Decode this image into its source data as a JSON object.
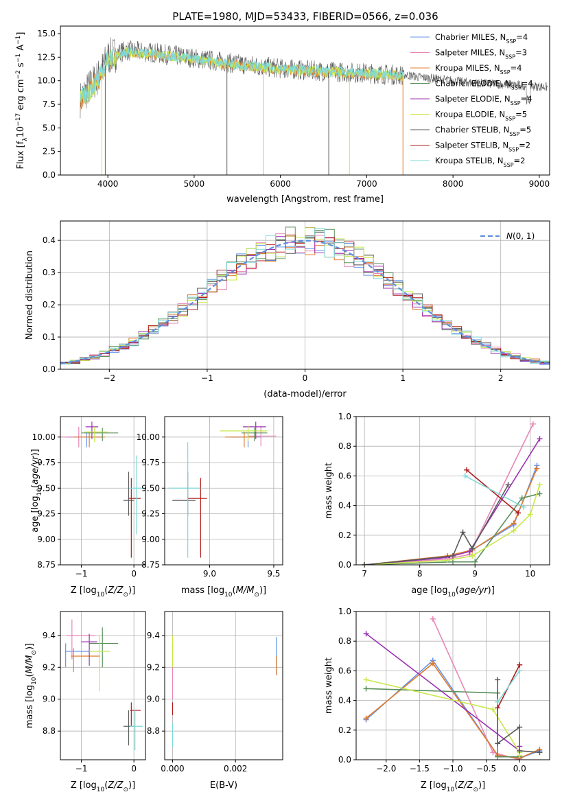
{
  "figure_title": "PLATE=1980, MJD=53433, FIBERID=0566, z=0.036",
  "colors": {
    "c0": "#6495ed",
    "c1": "#e887b7",
    "c2": "#e07b2c",
    "c3": "#5b8f5b",
    "c4": "#9b30b5",
    "c5": "#c8e84a",
    "c6": "#5a5a5a",
    "c7": "#b01c1c",
    "c8": "#7fd8d8",
    "normal": "#5f8fdc",
    "grid": "#b0b0b0"
  },
  "legend": [
    {
      "text": "Chabrier MILES, N",
      "sub": "SSP",
      "tail": "=4",
      "color": "c0"
    },
    {
      "text": "Salpeter MILES, N",
      "sub": "SSP",
      "tail": "=3",
      "color": "c1"
    },
    {
      "text": "Kroupa MILES, N",
      "sub": "SSP",
      "tail": "=4",
      "color": "c2"
    },
    {
      "text": "Chabrier ELODIE, N",
      "sub": "SSP",
      "tail": "=4",
      "color": "c3"
    },
    {
      "text": "Salpeter ELODIE, N",
      "sub": "SSP",
      "tail": "=4",
      "color": "c4"
    },
    {
      "text": "Kroupa ELODIE, N",
      "sub": "SSP",
      "tail": "=5",
      "color": "c5"
    },
    {
      "text": "Chabrier STELIB, N",
      "sub": "SSP",
      "tail": "=5",
      "color": "c6"
    },
    {
      "text": "Salpeter STELIB, N",
      "sub": "SSP",
      "tail": "=2",
      "color": "c7"
    },
    {
      "text": "Kroupa STELIB, N",
      "sub": "SSP",
      "tail": "=2",
      "color": "c8"
    }
  ],
  "chart_data": [
    {
      "id": "spectrum",
      "type": "line",
      "title": "PLATE=1980, MJD=53433, FIBERID=0566, z=0.036",
      "xlabel": "wavelength [Angstrom, rest frame]",
      "ylabel": "Flux [f_λ 10^-17 erg cm^-2 s^-1 A^-1]",
      "xlim": [
        3450,
        9120
      ],
      "ylim": [
        0,
        15.8
      ],
      "xticks": [
        4000,
        5000,
        6000,
        7000,
        8000,
        9000
      ],
      "yticks": [
        0.0,
        2.5,
        5.0,
        7.5,
        10.0,
        12.5,
        15.0
      ],
      "ytick_labels": [
        "0.0",
        "2.5",
        "5.0",
        "7.5",
        "10.0",
        "12.5",
        "15.0"
      ],
      "grid": false,
      "legend_position": "top-right",
      "data_envelope": {
        "x": [
          3680,
          3800,
          3900,
          4000,
          4200,
          4500,
          5000,
          5500,
          6000,
          6500,
          7000,
          7400
        ],
        "y": [
          8.0,
          9.5,
          10.5,
          12.5,
          13.2,
          13.0,
          12.4,
          11.8,
          11.3,
          11.0,
          10.8,
          10.6
        ]
      },
      "model_envelope": {
        "x": [
          3680,
          3800,
          3900,
          4000,
          4200,
          4500,
          5000,
          5500,
          6000,
          6500,
          7000,
          7400
        ],
        "y": [
          7.8,
          9.0,
          10.2,
          12.2,
          13.0,
          12.8,
          12.2,
          11.6,
          11.2,
          10.9,
          10.7,
          10.5
        ]
      },
      "observed_tail": {
        "x": [
          7400,
          7600,
          7800,
          8000,
          8200,
          8400,
          8600,
          8800,
          9000,
          9100
        ],
        "y": [
          10.7,
          10.4,
          10.2,
          10.0,
          9.8,
          9.7,
          9.6,
          9.5,
          9.4,
          9.3
        ]
      },
      "drops": [
        {
          "x": 3930,
          "color": "c5"
        },
        {
          "x": 3970,
          "color": "c4"
        },
        {
          "x": 5380,
          "color": "c6"
        },
        {
          "x": 5800,
          "color": "c8"
        },
        {
          "x": 6560,
          "color": "c6"
        },
        {
          "x": 6800,
          "color": "c5"
        },
        {
          "x": 7420,
          "color": "c2"
        }
      ]
    },
    {
      "id": "residuals",
      "type": "line",
      "xlabel": "(data-model)/error",
      "ylabel": "Normed distribution",
      "xlim": [
        -2.5,
        2.5
      ],
      "ylim": [
        0,
        0.46
      ],
      "xticks": [
        -2,
        -1,
        0,
        1,
        2
      ],
      "xtick_labels": [
        "−2",
        "−1",
        "0",
        "1",
        "2"
      ],
      "yticks": [
        0.0,
        0.1,
        0.2,
        0.3,
        0.4
      ],
      "ytick_labels": [
        "0.0",
        "0.1",
        "0.2",
        "0.3",
        "0.4"
      ],
      "grid": true,
      "legend_position": "top-right",
      "series": [
        {
          "name": "N(0, 1)",
          "curve": "standard normal pdf"
        }
      ],
      "histogram_bins": 50
    },
    {
      "id": "age_vs_Z",
      "type": "scatter",
      "xlabel": "Z [log10(Z/Z⊙)]",
      "ylabel": "age  [log10(age/yr)]",
      "xlim": [
        -1.4,
        0.22
      ],
      "ylim": [
        8.75,
        10.2
      ],
      "xticks": [
        -1,
        0
      ],
      "xtick_labels": [
        "−1",
        "0"
      ],
      "yticks": [
        8.75,
        9.0,
        9.25,
        9.5,
        9.75,
        10.0
      ],
      "ytick_labels": [
        "8.75",
        "9.00",
        "9.25",
        "9.50",
        "9.75",
        "10.00"
      ],
      "grid": true,
      "points": [
        {
          "x": -0.9,
          "y": 10.0,
          "xerr": [
            0.4,
            0.3
          ],
          "yerr": [
            0.1,
            0.05
          ],
          "color": "c0"
        },
        {
          "x": -1.05,
          "y": 10.0,
          "xerr": [
            0.35,
            0.3
          ],
          "yerr": [
            0.1,
            0.1
          ],
          "color": "c1"
        },
        {
          "x": -0.85,
          "y": 10.0,
          "xerr": [
            0.3,
            0.3
          ],
          "yerr": [
            0.1,
            0.05
          ],
          "color": "c2"
        },
        {
          "x": -0.6,
          "y": 10.04,
          "xerr": [
            0.4,
            0.3
          ],
          "yerr": [
            0.08,
            0.05
          ],
          "color": "c3"
        },
        {
          "x": -0.8,
          "y": 10.1,
          "xerr": [
            0.12,
            0.12
          ],
          "yerr": [
            0.12,
            0.05
          ],
          "color": "c4"
        },
        {
          "x": -0.75,
          "y": 10.05,
          "xerr": [
            0.2,
            0.25
          ],
          "yerr": [
            0.1,
            0.05
          ],
          "color": "c5"
        },
        {
          "x": -0.1,
          "y": 9.38,
          "xerr": [
            0.1,
            0.1
          ],
          "yerr": [
            0.15,
            0.28
          ],
          "color": "c6"
        },
        {
          "x": -0.05,
          "y": 9.4,
          "xerr": [
            0.05,
            0.18
          ],
          "yerr": [
            0.58,
            0.2
          ],
          "color": "c7"
        },
        {
          "x": 0.05,
          "y": 9.5,
          "xerr": [
            0.12,
            0.15
          ],
          "yerr": [
            0.45,
            0.32
          ],
          "color": "c8"
        }
      ]
    },
    {
      "id": "age_vs_mass",
      "type": "scatter",
      "xlabel": "mass [log10(M/M⊙)]",
      "ylabel": "",
      "xlim": [
        8.65,
        9.57
      ],
      "ylim": [
        8.75,
        10.2
      ],
      "xticks": [
        9.0,
        9.5
      ],
      "xtick_labels": [
        "9.0",
        "9.5"
      ],
      "yticks": [
        8.75,
        9.0,
        9.25,
        9.5,
        9.75,
        10.0
      ],
      "ytick_labels": [
        "8.75",
        "9.00",
        "9.25",
        "9.50",
        "9.75",
        "10.00"
      ],
      "grid": true,
      "points": [
        {
          "x": 9.3,
          "y": 10.0,
          "xerr": [
            0.15,
            0.1
          ],
          "yerr": [
            0.1,
            0.05
          ],
          "color": "c0"
        },
        {
          "x": 9.4,
          "y": 10.01,
          "xerr": [
            0.1,
            0.12
          ],
          "yerr": [
            0.1,
            0.1
          ],
          "color": "c1"
        },
        {
          "x": 9.27,
          "y": 10.0,
          "xerr": [
            0.15,
            0.1
          ],
          "yerr": [
            0.1,
            0.05
          ],
          "color": "c2"
        },
        {
          "x": 9.35,
          "y": 10.04,
          "xerr": [
            0.1,
            0.1
          ],
          "yerr": [
            0.08,
            0.05
          ],
          "color": "c3"
        },
        {
          "x": 9.36,
          "y": 10.1,
          "xerr": [
            0.1,
            0.08
          ],
          "yerr": [
            0.12,
            0.05
          ],
          "color": "c4"
        },
        {
          "x": 9.3,
          "y": 10.06,
          "xerr": [
            0.22,
            0.15
          ],
          "yerr": [
            0.1,
            0.05
          ],
          "color": "c5"
        },
        {
          "x": 8.83,
          "y": 9.38,
          "xerr": [
            0.12,
            0.06
          ],
          "yerr": [
            0.15,
            0.28
          ],
          "color": "c6"
        },
        {
          "x": 8.93,
          "y": 9.4,
          "xerr": [
            0.1,
            0.05
          ],
          "yerr": [
            0.58,
            0.2
          ],
          "color": "c7"
        },
        {
          "x": 8.83,
          "y": 9.5,
          "xerr": [
            0.15,
            0.1
          ],
          "yerr": [
            0.68,
            0.45
          ],
          "color": "c8"
        }
      ]
    },
    {
      "id": "weight_vs_age",
      "type": "line",
      "xlabel": "age  [log10(age/yr)]",
      "ylabel": "mass weight",
      "xlim": [
        6.85,
        10.35
      ],
      "ylim": [
        0,
        1.0
      ],
      "xticks": [
        7,
        8,
        9,
        10
      ],
      "xtick_labels": [
        "7",
        "8",
        "9",
        "10"
      ],
      "yticks": [
        0.0,
        0.2,
        0.4,
        0.6,
        0.8,
        1.0
      ],
      "ytick_labels": [
        "0.0",
        "0.2",
        "0.4",
        "0.6",
        "0.8",
        "1.0"
      ],
      "grid": true,
      "series": [
        {
          "color": "c0",
          "x": [
            7.0,
            8.5,
            8.95,
            9.7,
            10.12
          ],
          "y": [
            0.0,
            0.05,
            0.1,
            0.27,
            0.67
          ]
        },
        {
          "color": "c1",
          "x": [
            7.0,
            8.5,
            8.9,
            10.05
          ],
          "y": [
            0.0,
            0.04,
            0.07,
            0.95
          ]
        },
        {
          "color": "c2",
          "x": [
            7.0,
            8.5,
            8.95,
            9.7,
            10.12
          ],
          "y": [
            0.0,
            0.06,
            0.1,
            0.28,
            0.65
          ]
        },
        {
          "color": "c3",
          "x": [
            7.0,
            8.6,
            9.0,
            9.85,
            10.17
          ],
          "y": [
            0.0,
            0.02,
            0.02,
            0.45,
            0.48
          ]
        },
        {
          "color": "c4",
          "x": [
            7.0,
            8.5,
            8.9,
            10.17
          ],
          "y": [
            0.0,
            0.05,
            0.09,
            0.85
          ]
        },
        {
          "color": "c5",
          "x": [
            7.0,
            8.5,
            8.95,
            9.7,
            10.0,
            10.17
          ],
          "y": [
            0.0,
            0.03,
            0.06,
            0.23,
            0.34,
            0.54
          ]
        },
        {
          "color": "c6",
          "x": [
            7.0,
            8.6,
            8.78,
            8.95,
            9.6
          ],
          "y": [
            0.0,
            0.06,
            0.22,
            0.11,
            0.54
          ]
        },
        {
          "color": "c7",
          "x": [
            8.85,
            9.78
          ],
          "y": [
            0.64,
            0.35
          ]
        },
        {
          "color": "c8",
          "x": [
            8.82,
            9.88
          ],
          "y": [
            0.6,
            0.39
          ]
        }
      ]
    },
    {
      "id": "mass_vs_Z",
      "type": "scatter",
      "xlabel": "Z [log10(Z/Z⊙)]",
      "ylabel": "mass [log10(M/M⊙)]",
      "xlim": [
        -1.4,
        0.22
      ],
      "ylim": [
        8.62,
        9.55
      ],
      "xticks": [
        -1,
        0
      ],
      "xtick_labels": [
        "−1",
        "0"
      ],
      "yticks": [
        8.8,
        9.0,
        9.2,
        9.4
      ],
      "ytick_labels": [
        "8.8",
        "9.0",
        "9.2",
        "9.4"
      ],
      "grid": true,
      "points": [
        {
          "x": -1.3,
          "y": 9.3,
          "xerr": [
            0.0,
            0.5
          ],
          "yerr": [
            0.1,
            0.05
          ],
          "color": "c0"
        },
        {
          "x": -1.18,
          "y": 9.4,
          "xerr": [
            0.1,
            0.45
          ],
          "yerr": [
            0.15,
            0.1
          ],
          "color": "c1"
        },
        {
          "x": -1.15,
          "y": 9.27,
          "xerr": [
            0.05,
            0.5
          ],
          "yerr": [
            0.1,
            0.05
          ],
          "color": "c2"
        },
        {
          "x": -0.6,
          "y": 9.35,
          "xerr": [
            0.25,
            0.3
          ],
          "yerr": [
            0.15,
            0.1
          ],
          "color": "c3"
        },
        {
          "x": -0.85,
          "y": 9.36,
          "xerr": [
            0.15,
            0.15
          ],
          "yerr": [
            0.15,
            0.05
          ],
          "color": "c4"
        },
        {
          "x": -0.65,
          "y": 9.3,
          "xerr": [
            0.2,
            0.2
          ],
          "yerr": [
            0.25,
            0.1
          ],
          "color": "c5"
        },
        {
          "x": -0.1,
          "y": 8.83,
          "xerr": [
            0.1,
            0.1
          ],
          "yerr": [
            0.12,
            0.1
          ],
          "color": "c6"
        },
        {
          "x": -0.05,
          "y": 8.93,
          "xerr": [
            0.02,
            0.18
          ],
          "yerr": [
            0.1,
            0.05
          ],
          "color": "c7"
        },
        {
          "x": 0.02,
          "y": 8.83,
          "xerr": [
            0.1,
            0.15
          ],
          "yerr": [
            0.15,
            0.1
          ],
          "color": "c8"
        }
      ]
    },
    {
      "id": "mass_vs_ebv",
      "type": "scatter",
      "xlabel": "E(B-V)",
      "ylabel": "",
      "xlim": [
        -0.00025,
        0.0035
      ],
      "ylim": [
        8.62,
        9.55
      ],
      "xticks": [
        0.0,
        0.002
      ],
      "xtick_labels": [
        "0.000",
        "0.002"
      ],
      "yticks": [
        8.8,
        9.0,
        9.2,
        9.4
      ],
      "ytick_labels": [
        "8.8",
        "9.0",
        "9.2",
        "9.4"
      ],
      "grid": true,
      "points": [
        {
          "x": 0.0,
          "y": 9.2,
          "yerr": [
            0.2,
            0.15
          ],
          "color": "c1"
        },
        {
          "x": 0.0,
          "y": 9.3,
          "yerr": [
            0.1,
            0.1
          ],
          "color": "c5"
        },
        {
          "x": 0.0,
          "y": 8.93,
          "yerr": [
            0.03,
            0.05
          ],
          "color": "c7"
        },
        {
          "x": 0.0,
          "y": 8.8,
          "yerr": [
            0.1,
            0.05
          ],
          "color": "c8"
        },
        {
          "x": 0.0033,
          "y": 9.27,
          "yerr": [
            0.12,
            0.12
          ],
          "color": "c0"
        },
        {
          "x": 0.0033,
          "y": 9.2,
          "yerr": [
            0.05,
            0.07
          ],
          "color": "c2"
        }
      ]
    },
    {
      "id": "weight_vs_Z",
      "type": "line",
      "xlabel": "Z [log10(Z/Z⊙)]",
      "ylabel": "mass weight",
      "xlim": [
        -2.45,
        0.45
      ],
      "ylim": [
        0,
        1.0
      ],
      "xticks": [
        -2.0,
        -1.5,
        -1.0,
        -0.5,
        0.0
      ],
      "xtick_labels": [
        "−2.0",
        "−1.5",
        "−1.0",
        "−0.5",
        "0.0"
      ],
      "yticks": [
        0.0,
        0.2,
        0.4,
        0.6,
        0.8,
        1.0
      ],
      "ytick_labels": [
        "0.0",
        "0.2",
        "0.4",
        "0.6",
        "0.8",
        "1.0"
      ],
      "grid": true,
      "series": [
        {
          "color": "c0",
          "x": [
            -2.3,
            -1.3,
            -0.33,
            0.0,
            0.3
          ],
          "y": [
            0.27,
            0.67,
            0.03,
            0.01,
            0.06
          ]
        },
        {
          "color": "c1",
          "x": [
            -1.3,
            -0.4,
            0.0
          ],
          "y": [
            0.95,
            0.05,
            0.0
          ]
        },
        {
          "color": "c2",
          "x": [
            -2.3,
            -1.3,
            -0.33,
            0.0,
            0.3
          ],
          "y": [
            0.28,
            0.65,
            0.03,
            0.01,
            0.07
          ]
        },
        {
          "color": "c3",
          "x": [
            -2.3,
            -0.33,
            -0.33,
            0.0
          ],
          "y": [
            0.48,
            0.45,
            0.02,
            0.02
          ]
        },
        {
          "color": "c4",
          "x": [
            -2.3,
            0.0,
            0.0
          ],
          "y": [
            0.85,
            0.06,
            0.09
          ]
        },
        {
          "color": "c5",
          "x": [
            -2.3,
            -0.4,
            0.0,
            0.0
          ],
          "y": [
            0.54,
            0.34,
            0.05,
            0.03
          ]
        },
        {
          "color": "c6",
          "x": [
            -0.33,
            -0.33,
            0.0,
            0.0,
            0.3
          ],
          "y": [
            0.54,
            0.11,
            0.22,
            0.06,
            0.05
          ]
        },
        {
          "color": "c7",
          "x": [
            -0.33,
            0.0
          ],
          "y": [
            0.35,
            0.64
          ]
        },
        {
          "color": "c8",
          "x": [
            -0.33,
            0.0
          ],
          "y": [
            0.39,
            0.6
          ]
        }
      ]
    }
  ]
}
